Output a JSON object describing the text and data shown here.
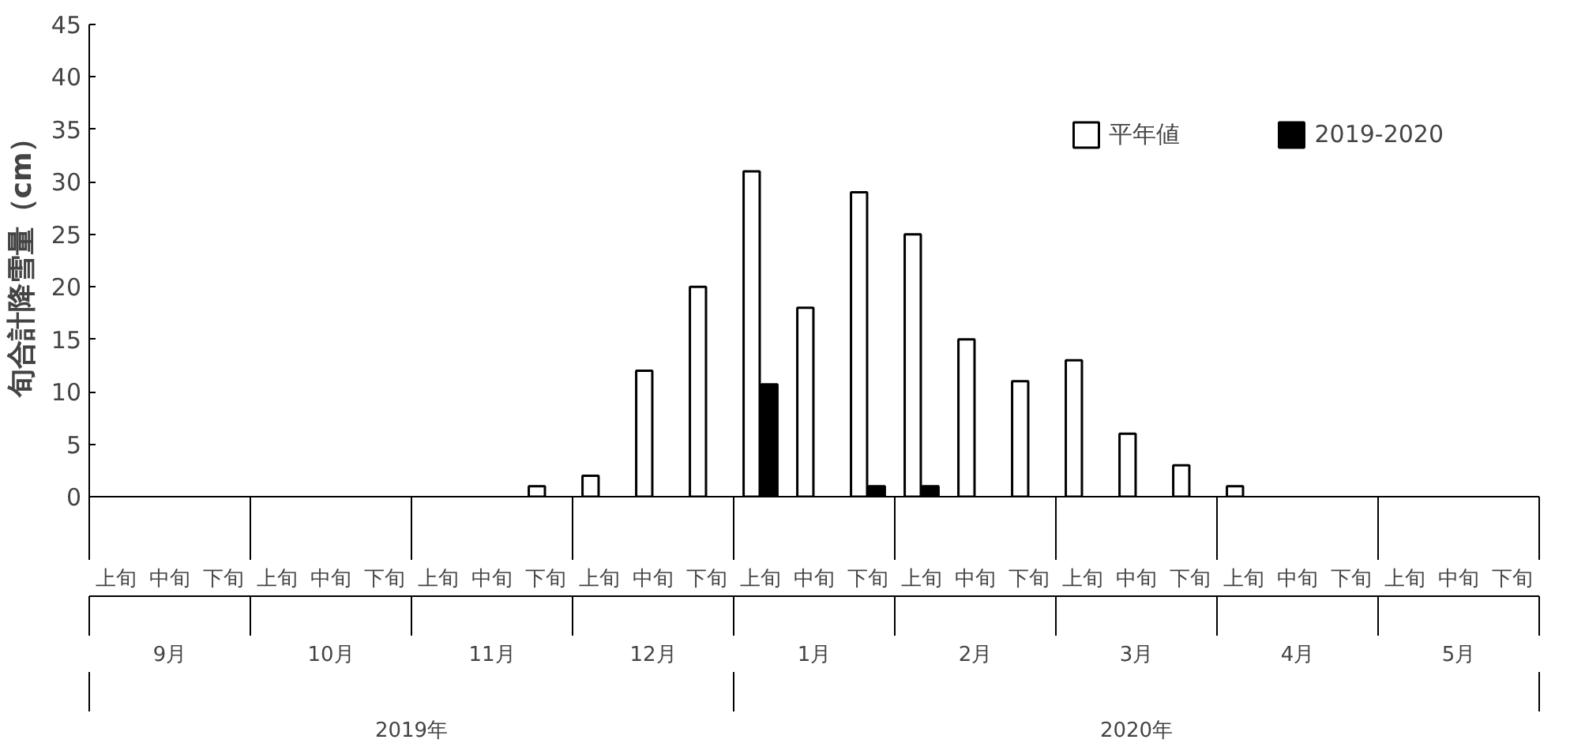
{
  "chart_data": {
    "type": "bar",
    "ylabel": "旬合計降雪量（cm）",
    "categories": [
      "上旬",
      "中旬",
      "下旬",
      "上旬",
      "中旬",
      "下旬",
      "上旬",
      "中旬",
      "下旬",
      "上旬",
      "中旬",
      "下旬",
      "上旬",
      "中旬",
      "下旬",
      "上旬",
      "中旬",
      "下旬",
      "上旬",
      "中旬",
      "下旬",
      "上旬",
      "中旬",
      "下旬",
      "上旬",
      "中旬",
      "下旬"
    ],
    "series": [
      {
        "name": "平年値",
        "color": "#ffffff",
        "values": [
          0,
          0,
          0,
          0,
          0,
          0,
          0,
          0,
          1,
          2,
          12,
          20,
          31,
          18,
          29,
          25,
          15,
          11,
          13,
          6,
          3,
          1,
          0,
          0,
          0,
          0,
          0
        ]
      },
      {
        "name": "2019-2020",
        "color": "#000000",
        "values": [
          0,
          0,
          0,
          0,
          0,
          0,
          0,
          0,
          0,
          0,
          0,
          0,
          10.7,
          0,
          1,
          1,
          0,
          0,
          0,
          0,
          0,
          0,
          0,
          0,
          0,
          0,
          0
        ]
      }
    ],
    "ylim": [
      0,
      45
    ],
    "yticks": [
      0,
      5,
      10,
      15,
      20,
      25,
      30,
      35,
      40,
      45
    ],
    "legend": "top right",
    "annotations": [
      "9月",
      "10月",
      "11月",
      "12月",
      "1月",
      "2月",
      "3月",
      "4月",
      "5月",
      "2019年",
      "2020年"
    ]
  }
}
